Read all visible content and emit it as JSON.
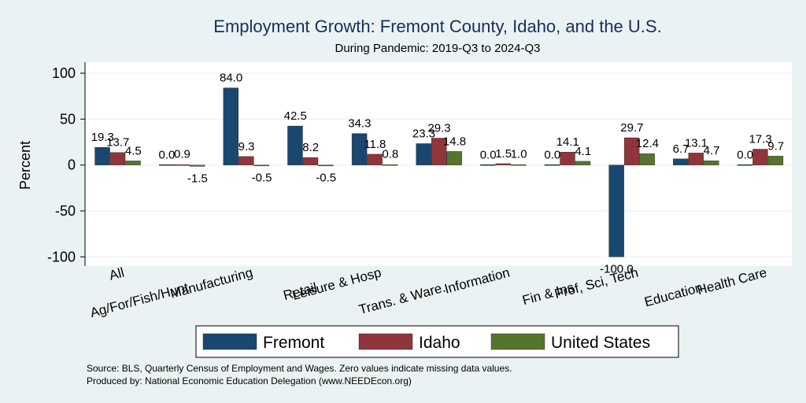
{
  "chart_data": {
    "type": "bar",
    "title": "Employment Growth: Fremont County, Idaho, and the U.S.",
    "subtitle": "During Pandemic: 2019-Q3 to 2024-Q3",
    "ylabel": "Percent",
    "xlabel": "",
    "ylim": [
      -110,
      112
    ],
    "yticks": [
      100,
      50,
      0,
      -50,
      -100
    ],
    "categories": [
      "All",
      "Ag/For/Fish/Hunt",
      "Manufacturing",
      "Retail",
      "Leisure & Hosp",
      "Trans. & Ware.",
      "Information",
      "Fin & Ins",
      "Prof, Sci, Tech",
      "Education",
      "Health Care"
    ],
    "series": [
      {
        "name": "Fremont",
        "color": "#1a476f",
        "values": [
          19.3,
          0.0,
          84.0,
          42.5,
          34.3,
          23.3,
          0.0,
          0.0,
          -100.0,
          6.7,
          0.0
        ]
      },
      {
        "name": "Idaho",
        "color": "#90353b",
        "values": [
          13.7,
          0.9,
          9.3,
          8.2,
          11.8,
          29.3,
          1.5,
          14.1,
          29.7,
          13.1,
          17.3
        ]
      },
      {
        "name": "United States",
        "color": "#55752f",
        "values": [
          4.5,
          -1.5,
          -0.5,
          -0.5,
          0.8,
          14.8,
          1.0,
          4.1,
          12.4,
          4.7,
          9.7
        ]
      }
    ],
    "legend_position": "bottom",
    "grid": true,
    "notes": [
      "Source: BLS, Quarterly Census of Employment and Wages. Zero values indicate missing data values.",
      "Produced by: National Economic Education Delegation (www.NEEDEcon.org)"
    ]
  }
}
